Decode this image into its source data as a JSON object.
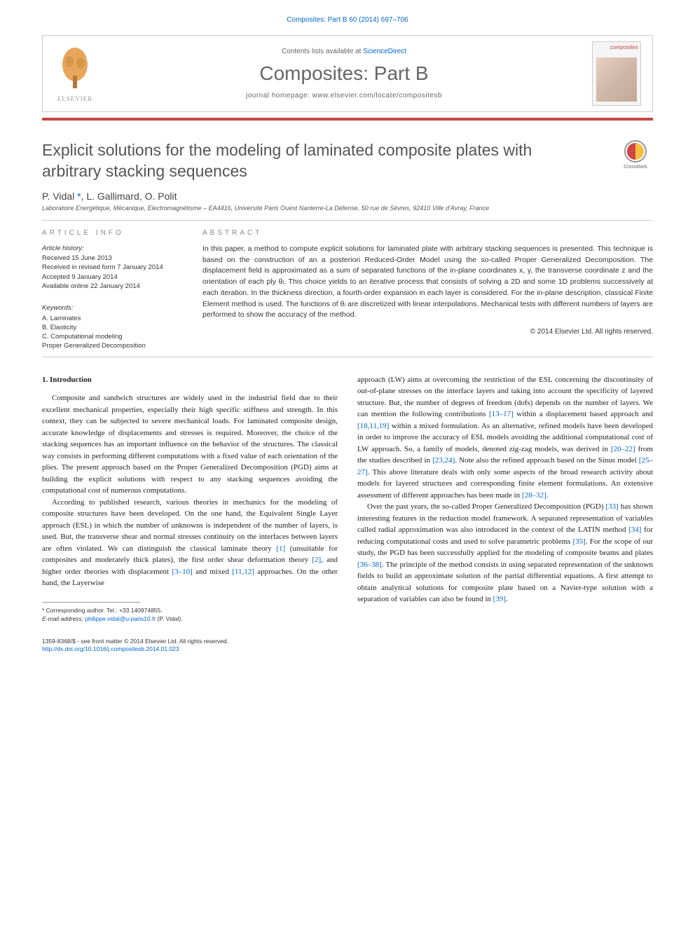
{
  "header": {
    "citation": "Composites: Part B 60 (2014) 697–706",
    "contents_available": "Contents lists available at ",
    "sciencedirect": "ScienceDirect",
    "journal_name": "Composites: Part B",
    "homepage_label": "journal homepage: ",
    "homepage_url": "www.elsevier.com/locate/compositesb",
    "elsevier_label": "ELSEVIER",
    "cover_title": "composites",
    "bar_color": "#c94545"
  },
  "article": {
    "title": "Explicit solutions for the modeling of laminated composite plates with arbitrary stacking sequences",
    "crossmark": "CrossMark",
    "authors_html": "P. Vidal <span class=\"corr\">*</span>, L. Gallimard, O. Polit",
    "affiliation": "Laboratoire Energétique, Mécanique, Electromagnétisme – EA4416, Université Paris Ouest Nanterre-La Défense, 50 rue de Sèvres, 92410 Ville d'Avray, France"
  },
  "info": {
    "section_label": "ARTICLE INFO",
    "history_heading": "Article history:",
    "received": "Received 15 June 2013",
    "revised": "Received in revised form 7 January 2014",
    "accepted": "Accepted 9 January 2014",
    "online": "Available online 22 January 2014",
    "keywords_heading": "Keywords:",
    "keywords": [
      "A. Laminates",
      "B. Elasticity",
      "C. Computational modeling",
      "Proper Generalized Decomposition"
    ]
  },
  "abstract": {
    "section_label": "ABSTRACT",
    "text": "In this paper, a method to compute explicit solutions for laminated plate with arbitrary stacking sequences is presented. This technique is based on the construction of an a posteriori Reduced-Order Model using the so-called Proper Generalized Decomposition. The displacement field is approximated as a sum of separated functions of the in-plane coordinates x, y, the transverse coordinate z and the orientation of each ply θᵢ. This choice yields to an iterative process that consists of solving a 2D and some 1D problems successively at each iteration. In the thickness direction, a fourth-order expansion in each layer is considered. For the in-plane description, classical Finite Element method is used. The functions of θᵢ are discretized with linear interpolations. Mechanical tests with different numbers of layers are performed to show the accuracy of the method.",
    "copyright": "© 2014 Elsevier Ltd. All rights reserved."
  },
  "body": {
    "intro_heading": "1. Introduction",
    "col1_p1": "Composite and sandwich structures are widely used in the industrial field due to their excellent mechanical properties, especially their high specific stiffness and strength. In this context, they can be subjected to severe mechanical loads. For laminated composite design, accurate knowledge of displacements and stresses is required. Moreover, the choice of the stacking sequences has an important influence on the behavior of the structures. The classical way consists in performing different computations with a fixed value of each orientation of the plies. The present approach based on the Proper Generalized Decomposition (PGD) aims at building the explicit solutions with respect to any stacking sequences avoiding the computational cost of numerous computations.",
    "col1_p2": "According to published research, various theories in mechanics for the modeling of composite structures have been developed. On the one hand, the Equivalent Single Layer approach (ESL) in which the number of unknowns is independent of the number of layers, is used. But, the transverse shear and normal stresses continuity on the interfaces between layers are often violated. We can distinguish the classical laminate theory <span class=\"ref\">[1]</span> (unsuitable for composites and moderately thick plates), the first order shear deformation theory <span class=\"ref\">[2]</span>, and higher order theories with displacement <span class=\"ref\">[3–10]</span> and mixed <span class=\"ref\">[11,12]</span> approaches. On the other hand, the Layerwise",
    "col2_p1": "approach (LW) aims at overcoming the restriction of the ESL concerning the discontinuity of out-of-plane stresses on the interface layers and taking into account the specificity of layered structure. But, the number of degrees of freedom (dofs) depends on the number of layers. We can mention the following contributions <span class=\"ref\">[13–17]</span> within a displacement based approach and <span class=\"ref\">[18,11,19]</span> within a mixed formulation. As an alternative, refined models have been developed in order to improve the accuracy of ESL models avoiding the additional computational cost of LW approach. So, a family of models, denoted zig-zag models, was derived in <span class=\"ref\">[20–22]</span> from the studies described in <span class=\"ref\">[23,24]</span>. Note also the refined approach based on the Sinus model <span class=\"ref\">[25–27]</span>. This above literature deals with only some aspects of the broad research activity about models for layered structures and corresponding finite element formulations. An extensive assessment of different approaches has been made in <span class=\"ref\">[28–32]</span>.",
    "col2_p2": "Over the past years, the so-called Proper Generalized Decomposition (PGD) <span class=\"ref\">[33]</span> has shown interesting features in the reduction model framework. A separated representation of variables called radial approximation was also introduced in the context of the LATIN method <span class=\"ref\">[34]</span> for reducing computational costs and used to solve parametric problems <span class=\"ref\">[35]</span>. For the scope of our study, the PGD has been successfully applied for the modeling of composite beams and plates <span class=\"ref\">[36–38]</span>. The principle of the method consists in using separated representation of the unknown fields to build an approximate solution of the partial differential equations. A first attempt to obtain analytical solutions for composite plate based on a Navier-type solution with a separation of variables can also be found in <span class=\"ref\">[39]</span>."
  },
  "footnote": {
    "corr_label": "* Corresponding author. Tel.: +33 140974855.",
    "email_label": "E-mail address: ",
    "email": "philippe.vidal@u-paris10.fr",
    "email_suffix": " (P. Vidal)."
  },
  "bottom": {
    "issn": "1359-8368/$ - see front matter © 2014 Elsevier Ltd. All rights reserved.",
    "doi": "http://dx.doi.org/10.1016/j.compositesb.2014.01.023"
  },
  "styling": {
    "page_bg": "#ffffff",
    "text_color": "#333333",
    "link_color": "#0066cc",
    "accent_color": "#c94545",
    "title_fontsize": 23,
    "journal_fontsize": 28,
    "body_fontsize": 11,
    "abstract_fontsize": 10.5,
    "info_fontsize": 9.5,
    "font_family_headings": "Arial, sans-serif",
    "font_family_body": "Georgia, serif"
  }
}
